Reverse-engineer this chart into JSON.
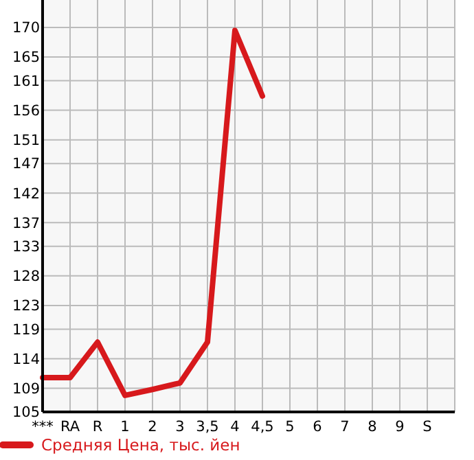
{
  "chart_data": {
    "type": "line",
    "categories": [
      "***",
      "RA",
      "R",
      "1",
      "2",
      "3",
      "3,5",
      "4",
      "4,5",
      "5",
      "6",
      "7",
      "8",
      "9",
      "S"
    ],
    "series": [
      {
        "name": "Средняя Цена, тыс. йен",
        "color": "#d7191c",
        "values": [
          110.8,
          110.8,
          116.8,
          107.8,
          108.8,
          109.9,
          116.8,
          169.5,
          158.4,
          null,
          null,
          null,
          null,
          null,
          null
        ]
      }
    ],
    "ylim": [
      105,
      174.64
    ],
    "yticks": [
      105,
      109,
      114,
      119,
      123,
      128,
      133,
      137,
      142,
      147,
      151,
      156,
      161,
      165,
      170
    ],
    "grid": true,
    "legend": "bottom",
    "marker": "none",
    "line_style": "solid"
  }
}
